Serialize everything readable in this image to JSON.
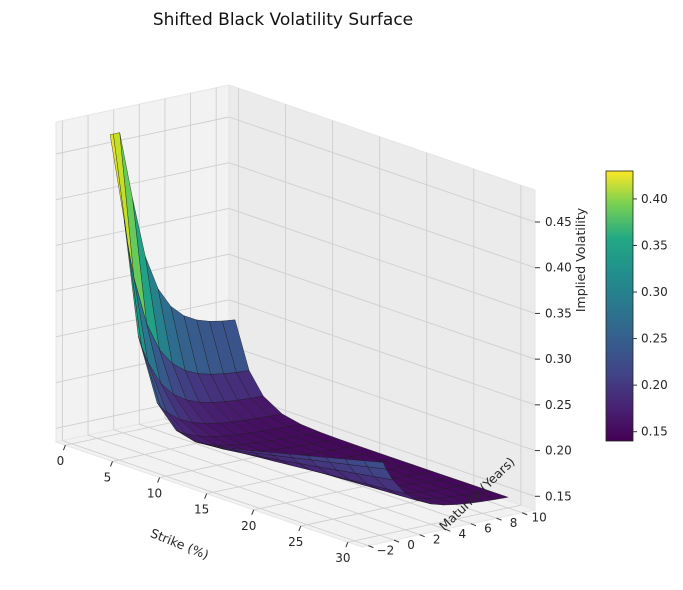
{
  "chart_data": {
    "type": "surface3d",
    "title": "Shifted Black Volatility Surface",
    "xlabel": "Strike (%)",
    "ylabel": "Maturity (Years)",
    "zlabel": "Implied Volatility",
    "x_ticks": [
      "0",
      "5",
      "10",
      "15",
      "20",
      "25",
      "30"
    ],
    "y_ticks": [
      "−2",
      "0",
      "2",
      "4",
      "6",
      "8",
      "10"
    ],
    "z_ticks": [
      "0.15",
      "0.20",
      "0.25",
      "0.30",
      "0.35",
      "0.40",
      "0.45"
    ],
    "xlim": [
      -1,
      31.5
    ],
    "ylim": [
      -2.5,
      11
    ],
    "zlim": [
      0.135,
      0.485
    ],
    "colormap": "viridis",
    "colorbar_range": [
      0.14,
      0.43
    ],
    "colorbar_ticks": [
      "0.15",
      "0.20",
      "0.25",
      "0.30",
      "0.35",
      "0.40"
    ],
    "grid": true,
    "strikes": [
      1,
      2.5,
      4,
      6,
      8,
      10,
      12,
      14,
      16,
      18,
      20,
      22,
      24,
      26,
      28,
      30
    ],
    "maturities": [
      0.25,
      0.5,
      1,
      2,
      3,
      4,
      5,
      6,
      7,
      8,
      9,
      10
    ]
  }
}
